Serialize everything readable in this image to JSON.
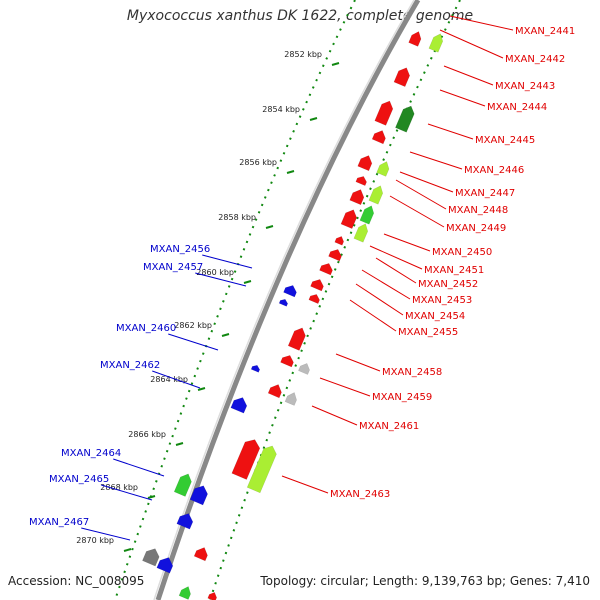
{
  "title": "Myxococcus xanthus DK 1622, complete genome",
  "accession": "Accession: NC_008095",
  "summary": "Topology: circular; Length: 9,139,763 bp; Genes: 7,410",
  "ticks": [
    "2852 kbp",
    "2854 kbp",
    "2856 kbp",
    "2858 kbp",
    "2860 kbp",
    "2862 kbp",
    "2864 kbp",
    "2866 kbp",
    "2868 kbp",
    "2870 kbp"
  ],
  "red_labels": [
    "MXAN_2441",
    "MXAN_2442",
    "MXAN_2443",
    "MXAN_2444",
    "MXAN_2445",
    "MXAN_2446",
    "MXAN_2447",
    "MXAN_2448",
    "MXAN_2449",
    "MXAN_2450",
    "MXAN_2451",
    "MXAN_2452",
    "MXAN_2453",
    "MXAN_2454",
    "MXAN_2455",
    "MXAN_2458",
    "MXAN_2459",
    "MXAN_2461",
    "MXAN_2463"
  ],
  "blue_labels": [
    "MXAN_2456",
    "MXAN_2457",
    "MXAN_2460",
    "MXAN_2462",
    "MXAN_2464",
    "MXAN_2465",
    "MXAN_2467"
  ],
  "colors": {
    "forward_gene": "#ee1111",
    "reverse_gene": "#1111dd",
    "feature_light": "#aaee33",
    "feature_dark": "#228822",
    "feature_mid": "#33cc33",
    "feature_grey": "#bbbbbb",
    "feature_dark_grey": "#777777",
    "backbone": "#888888",
    "tick_dots": "#118811"
  }
}
